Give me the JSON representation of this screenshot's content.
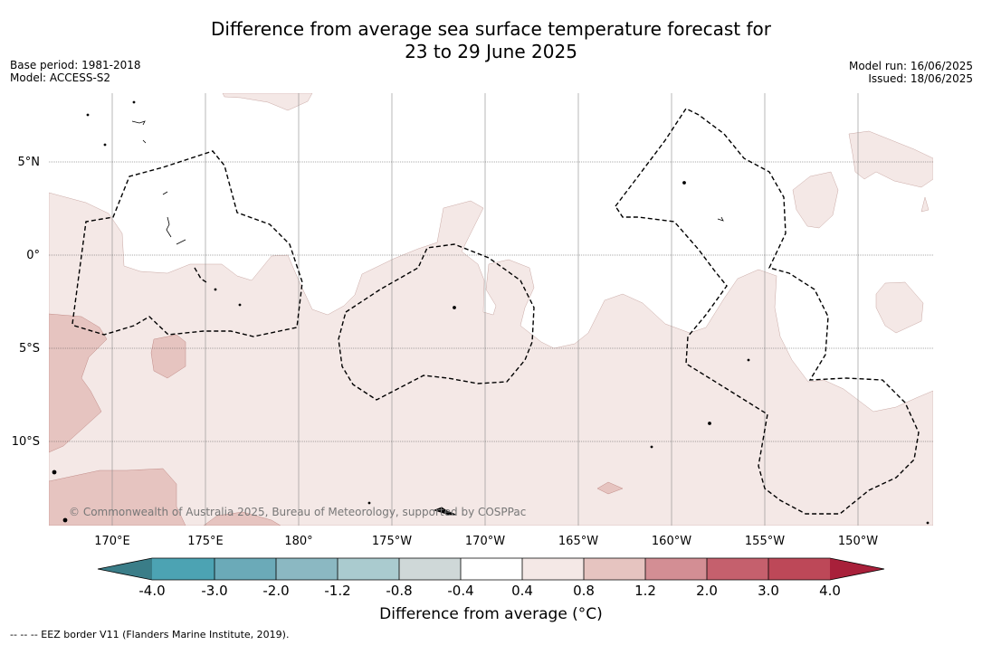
{
  "title": {
    "line1": "Difference from average sea surface temperature forecast for",
    "line2": "23 to 29 June 2025"
  },
  "meta_left": {
    "base_period": "Base period: 1981-2018",
    "model": "Model: ACCESS-S2"
  },
  "meta_right": {
    "model_run": "Model run: 16/06/2025",
    "issued": "Issued: 18/06/2025"
  },
  "map": {
    "lat_labels": [
      "5°N",
      "0°",
      "5°S",
      "10°S"
    ],
    "lon_labels": [
      "170°E",
      "175°E",
      "180°",
      "175°W",
      "170°W",
      "165°W",
      "160°W",
      "155°W",
      "150°W"
    ],
    "copyright": "© Commonwealth of Australia 2025, Bureau of Meteorology, supported by COSPPac",
    "background_color": "#ffffff",
    "warm_anomaly_light_color": "#f4e8e6",
    "warm_anomaly_mid_color": "#e6c4c0"
  },
  "colorbar": {
    "title": "Difference from average (°C)",
    "tick_labels": [
      "-4.0",
      "-3.0",
      "-2.0",
      "-1.2",
      "-0.8",
      "-0.4",
      "0.4",
      "0.8",
      "1.2",
      "2.0",
      "3.0",
      "4.0"
    ],
    "colors": [
      "#3a7d88",
      "#4ca3b3",
      "#6baab8",
      "#8bb8c2",
      "#aacbcf",
      "#cfd8d8",
      "#ffffff",
      "#f4e8e6",
      "#e6c4c0",
      "#d38e94",
      "#c5606d",
      "#bd4858",
      "#a8203a"
    ]
  },
  "footnote": "--  --  -- EEZ border V11 (Flanders Marine Institute, 2019)."
}
